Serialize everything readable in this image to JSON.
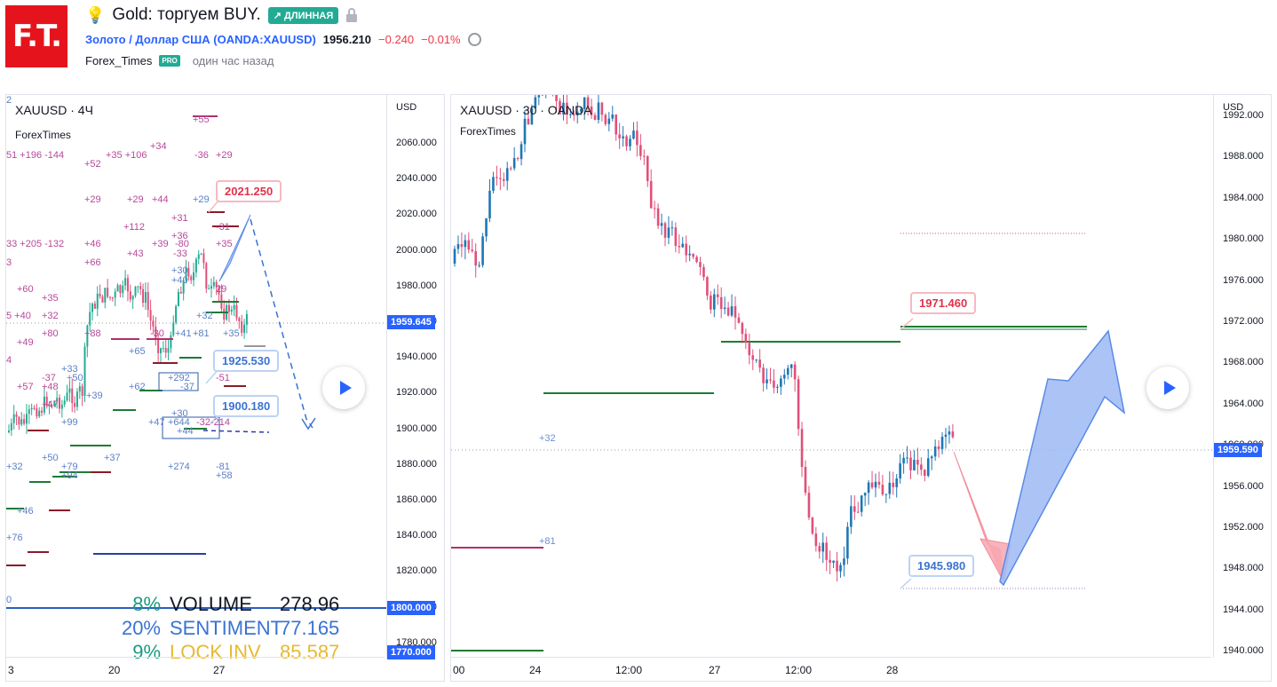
{
  "header": {
    "logo_text": "F.T.",
    "idea_title": "Gold: торгуем BUY.",
    "direction_badge": "↗ ДЛИННАЯ",
    "symbol_name": "Золото / Доллар США",
    "symbol_ticker": "(OANDA:XAUUSD)",
    "last_price": "1956.210",
    "change_abs": "−0.240",
    "change_pct": "−0.01%",
    "author": "Forex_Times",
    "author_badge": "PRO",
    "published": "один час назад"
  },
  "colors": {
    "up": "#22ab94",
    "down": "#e0507a",
    "accent": "#2962ff",
    "logo": "#e5141c"
  },
  "left_chart": {
    "symbol_label": "XAUUSD · 4Ч",
    "indicator_label": "ForexTimes",
    "currency": "USD",
    "y_ticks": [
      "2060.000",
      "2040.000",
      "2020.000",
      "2000.000",
      "1980.000",
      "1960.000",
      "1940.000",
      "1920.000",
      "1900.000",
      "1880.000",
      "1860.000",
      "1840.000",
      "1820.000",
      "1800.000",
      "1780.000"
    ],
    "current_price_tag": "1959.645",
    "level_tag_1": "1800.000",
    "level_tag_2": "1770.000",
    "x_ticks": [
      "3",
      "20",
      "27"
    ],
    "callouts": {
      "c1": "2021.250",
      "c2": "1925.530",
      "c3": "1900.180"
    },
    "annotations_pink": [
      "+55",
      "+34",
      "-36",
      "+29",
      "51 +196 -144",
      "+35 +106",
      "+52",
      "+29",
      "+29",
      "+44",
      "+31",
      "+112",
      "+36",
      "+39",
      "-80",
      "-33",
      "+46",
      "+43",
      "-31",
      "+35",
      "33 +205 -132",
      "+66",
      "3",
      "+60",
      "+35",
      "5 +40",
      "+32",
      "+49",
      "+80",
      "+88",
      "-30",
      "29",
      "-51",
      "4",
      "-37",
      "+57",
      "+48",
      "+47",
      "-32",
      "-214"
    ],
    "annotations_blue": [
      "+29",
      "+30",
      "+40",
      "+32",
      "+65",
      "+41",
      "+81",
      "+35",
      "+33",
      "+50",
      "+39",
      "+62",
      "+292",
      "-37",
      "+30",
      "+47",
      "+644",
      "+44",
      "+99",
      "+50",
      "+79",
      "+94",
      "+37",
      "+274",
      "-81",
      "+58",
      "+32",
      "+46",
      "+76",
      "0",
      "2"
    ],
    "stats": [
      {
        "pct": "8%",
        "name": "VOLUME",
        "value": "278.96"
      },
      {
        "pct": "20%",
        "name": "SENTIMENT",
        "value": "77.165"
      },
      {
        "pct": "9%",
        "name": "LOCK INV",
        "value": "85.587"
      }
    ]
  },
  "right_chart": {
    "symbol_label": "XAUUSD · 30 · OANDA",
    "indicator_label": "ForexTimes",
    "currency": "USD",
    "y_ticks": [
      "1992.000",
      "1988.000",
      "1984.000",
      "1980.000",
      "1976.000",
      "1972.000",
      "1968.000",
      "1964.000",
      "1960.000",
      "1956.000",
      "1952.000",
      "1948.000",
      "1944.000",
      "1940.000"
    ],
    "current_price_tag": "1959.590",
    "x_ticks": [
      "00",
      "24",
      "12:00",
      "27",
      "12:00",
      "28"
    ],
    "callouts": {
      "c1": "1971.460",
      "c2": "1945.980"
    },
    "annotations": {
      "a1": "+32",
      "a2": "+81"
    }
  }
}
